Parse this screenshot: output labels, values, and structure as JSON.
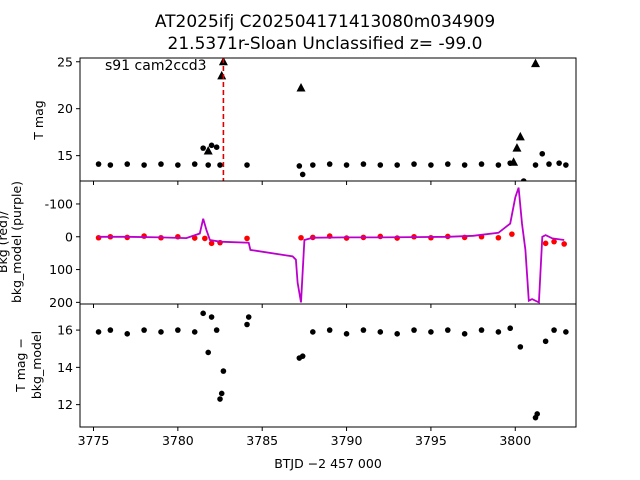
{
  "figure": {
    "title_line1": "AT2025ifj  C202504171413080m034909",
    "title_line2": "21.5371r-Sloan Unclassified z= -99.0"
  },
  "chart_data": [
    {
      "type": "scatter",
      "panel": "top",
      "ylabel": "T mag",
      "y_inverted": true,
      "xlim": [
        3774.2,
        3803.6
      ],
      "ylim": [
        25.4,
        12.3
      ],
      "yticks": [
        15,
        20,
        25
      ],
      "xticks_shown": false,
      "annotation": "s91 cam2ccd3",
      "vline": {
        "x": 3782.7,
        "color": "#dd0000",
        "style": "dashed"
      },
      "series": [
        {
          "color": "#000000",
          "marker": "circle",
          "x": [
            3775.3,
            3776.0,
            3777.0,
            3778.0,
            3779.0,
            3780.0,
            3781.0,
            3781.5,
            3781.8,
            3782.0,
            3782.3,
            3782.5,
            3784.1,
            3787.2,
            3787.4,
            3788.0,
            3789.0,
            3790.0,
            3791.0,
            3792.0,
            3793.0,
            3794.0,
            3795.0,
            3796.0,
            3797.0,
            3798.0,
            3799.0,
            3799.7,
            3800.5,
            3801.2,
            3801.6,
            3802.0,
            3802.6,
            3803.0
          ],
          "y": [
            14.1,
            14.0,
            14.1,
            14.0,
            14.1,
            14.0,
            14.1,
            15.8,
            14.0,
            16.1,
            15.9,
            14.0,
            14.0,
            13.9,
            13.0,
            14.0,
            14.1,
            14.0,
            14.1,
            14.0,
            14.0,
            14.1,
            14.0,
            14.1,
            14.0,
            14.1,
            14.0,
            14.2,
            12.3,
            14.0,
            15.2,
            14.1,
            14.2,
            14.0
          ]
        },
        {
          "color": "#000000",
          "marker": "triangle",
          "x": [
            3781.8,
            3782.6,
            3782.7,
            3787.3,
            3799.9,
            3800.1,
            3800.3,
            3801.2
          ],
          "y": [
            15.5,
            23.5,
            25.0,
            22.2,
            14.3,
            15.8,
            17.0,
            24.8
          ]
        }
      ]
    },
    {
      "type": "line",
      "panel": "middle",
      "ylabel_line1": "Bkg (red)/",
      "ylabel_line2": "bkg_model (purple)",
      "xlim": [
        3774.2,
        3803.6
      ],
      "ylim": [
        -170,
        205
      ],
      "yticks": [
        -100,
        0,
        100,
        200
      ],
      "xticks_shown": false,
      "series": [
        {
          "name": "Bkg",
          "color": "#ff0000",
          "marker": "circle",
          "x": [
            3775.3,
            3776.0,
            3777.0,
            3778.0,
            3779.0,
            3780.0,
            3781.0,
            3781.6,
            3782.0,
            3782.5,
            3784.1,
            3787.3,
            3788.0,
            3789.0,
            3790.0,
            3791.0,
            3792.0,
            3793.0,
            3794.0,
            3795.0,
            3796.0,
            3797.0,
            3798.0,
            3799.0,
            3799.8,
            3801.8,
            3802.3,
            3802.9
          ],
          "y": [
            3,
            0,
            2,
            -2,
            3,
            0,
            4,
            5,
            20,
            18,
            5,
            3,
            2,
            -2,
            4,
            2,
            -1,
            4,
            0,
            3,
            -1,
            2,
            0,
            3,
            -8,
            20,
            15,
            22
          ]
        },
        {
          "name": "bkg_model",
          "color": "#bb00cc",
          "marker": "line",
          "x": [
            3775.3,
            3777.0,
            3779.0,
            3780.5,
            3781.3,
            3781.5,
            3781.7,
            3781.9,
            3782.5,
            3784.2,
            3784.3,
            3786.8,
            3787.0,
            3787.1,
            3787.3,
            3787.5,
            3788.0,
            3790.0,
            3792.0,
            3794.0,
            3796.0,
            3797.5,
            3799.0,
            3799.7,
            3800.0,
            3800.2,
            3800.4,
            3800.6,
            3800.8,
            3801.0,
            3801.4,
            3801.6,
            3801.8,
            3802.2,
            3802.9
          ],
          "y": [
            0,
            0,
            2,
            4,
            -10,
            -55,
            -20,
            10,
            15,
            18,
            40,
            60,
            70,
            140,
            200,
            10,
            3,
            2,
            2,
            1,
            0,
            -3,
            -12,
            -40,
            -120,
            -150,
            -40,
            40,
            195,
            190,
            200,
            0,
            -5,
            5,
            10
          ]
        }
      ]
    },
    {
      "type": "scatter",
      "panel": "bottom",
      "ylabel_line1": "T mag −",
      "ylabel_line2": "bkg_model",
      "y_inverted": true,
      "xlim": [
        3774.2,
        3803.6
      ],
      "ylim": [
        17.4,
        10.8
      ],
      "yticks": [
        12,
        14,
        16
      ],
      "xlabel": "BTJD −2 457 000",
      "xticks": [
        3775,
        3780,
        3785,
        3790,
        3795,
        3800
      ],
      "series": [
        {
          "color": "#000000",
          "marker": "circle",
          "x": [
            3775.3,
            3776.0,
            3777.0,
            3778.0,
            3779.0,
            3780.0,
            3781.0,
            3781.5,
            3781.8,
            3782.0,
            3782.3,
            3782.5,
            3782.6,
            3782.7,
            3784.1,
            3784.2,
            3787.2,
            3787.4,
            3788.0,
            3789.0,
            3790.0,
            3791.0,
            3792.0,
            3793.0,
            3794.0,
            3795.0,
            3796.0,
            3797.0,
            3798.0,
            3799.0,
            3799.7,
            3800.3,
            3801.2,
            3801.3,
            3801.8,
            3802.3,
            3803.0
          ],
          "y": [
            15.9,
            16.0,
            15.8,
            16.0,
            15.9,
            16.0,
            15.9,
            16.9,
            14.8,
            16.7,
            16.0,
            12.3,
            12.6,
            13.8,
            16.3,
            16.7,
            14.5,
            14.6,
            15.9,
            16.0,
            15.8,
            16.0,
            15.9,
            15.8,
            16.0,
            15.9,
            16.0,
            15.8,
            16.0,
            15.9,
            16.1,
            15.1,
            11.3,
            11.5,
            15.4,
            16.0,
            15.9
          ]
        }
      ]
    }
  ]
}
